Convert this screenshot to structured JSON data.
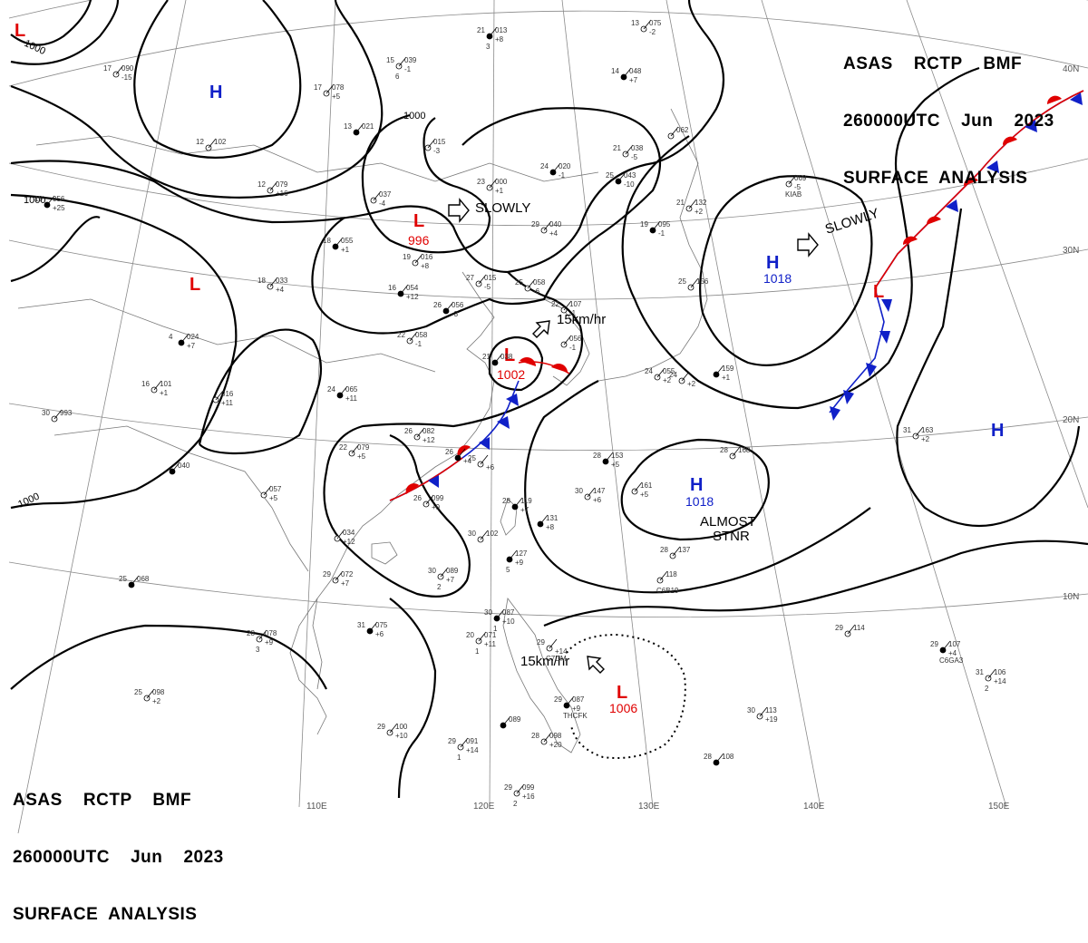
{
  "header": {
    "line1": "ASAS    RCTP    BMF",
    "line2": "260000UTC    Jun    2023",
    "line3": "SURFACE  ANALYSIS"
  },
  "grid": {
    "lat_labels": [
      "40N",
      "30N",
      "20N",
      "10N"
    ],
    "lon_labels": [
      "110E",
      "120E",
      "130E",
      "140E",
      "150E"
    ]
  },
  "isobars": {
    "label_1000": "1000"
  },
  "systems": [
    {
      "type": "L",
      "pressure": "996",
      "motion": "SLOWLY"
    },
    {
      "type": "L",
      "pressure": "1002",
      "motion": "15km/hr"
    },
    {
      "type": "L",
      "pressure": "1006",
      "motion": "15km/hr"
    },
    {
      "type": "H",
      "pressure": "1018",
      "motion": "SLOWLY"
    },
    {
      "type": "H",
      "pressure": "1018",
      "motion": "ALMOST STNR"
    },
    {
      "type": "H",
      "pressure": ""
    },
    {
      "type": "H",
      "pressure": ""
    },
    {
      "type": "L",
      "pressure": ""
    },
    {
      "type": "L",
      "pressure": ""
    }
  ],
  "labels": {
    "sys_L": "L",
    "sys_H": "H",
    "slowly": "SLOWLY",
    "speed": "15km/hr",
    "almost": "ALMOST",
    "stnr": "STNR",
    "p996": "996",
    "p1002": "1002",
    "p1006": "1006",
    "p1018": "1018"
  },
  "stations": [
    {
      "t": "21",
      "p": "013",
      "d": "+8",
      "w": "3"
    },
    {
      "t": "13",
      "p": "075",
      "d": "-2",
      "w": ""
    },
    {
      "t": "15",
      "p": "039",
      "d": "-1",
      "w": "6"
    },
    {
      "t": "14",
      "p": "048",
      "d": "+7",
      "w": ""
    },
    {
      "t": "17",
      "p": "090",
      "d": "-15",
      "w": ""
    },
    {
      "t": "17",
      "p": "078",
      "d": "+5",
      "w": ""
    },
    {
      "t": "13",
      "p": "021",
      "d": "",
      "w": ""
    },
    {
      "t": "",
      "p": "015",
      "d": "-3",
      "w": ""
    },
    {
      "t": "21",
      "p": "038",
      "d": "-5",
      "w": ""
    },
    {
      "t": "25",
      "p": "043",
      "d": "-10",
      "w": ""
    },
    {
      "t": "12",
      "p": "102",
      "d": "",
      "w": ""
    },
    {
      "t": "12",
      "p": "079",
      "d": "+16",
      "w": ""
    },
    {
      "t": "19",
      "p": "056",
      "d": "+25",
      "w": ""
    },
    {
      "t": "",
      "p": "037",
      "d": "-4",
      "w": ""
    },
    {
      "t": "23",
      "p": "000",
      "d": "+1",
      "w": ""
    },
    {
      "t": "24",
      "p": "020",
      "d": "-1",
      "w": ""
    },
    {
      "t": "",
      "p": "062",
      "d": "",
      "w": ""
    },
    {
      "t": "",
      "p": "069",
      "d": "-5",
      "w": "KIAB"
    },
    {
      "t": "18",
      "p": "055",
      "d": "+1",
      "w": ""
    },
    {
      "t": "19",
      "p": "016",
      "d": "+8",
      "w": ""
    },
    {
      "t": "29",
      "p": "040",
      "d": "+4",
      "w": ""
    },
    {
      "t": "19",
      "p": "095",
      "d": "-1",
      "w": ""
    },
    {
      "t": "21",
      "p": "132",
      "d": "+2",
      "w": ""
    },
    {
      "t": "18",
      "p": "033",
      "d": "+4",
      "w": ""
    },
    {
      "t": "16",
      "p": "054",
      "d": "+12",
      "w": ""
    },
    {
      "t": "27",
      "p": "015",
      "d": "-5",
      "w": ""
    },
    {
      "t": "25",
      "p": "058",
      "d": "-6",
      "w": ""
    },
    {
      "t": "26",
      "p": "056",
      "d": "-3",
      "w": ""
    },
    {
      "t": "22",
      "p": "107",
      "d": "-1",
      "w": ""
    },
    {
      "t": "25",
      "p": "156",
      "d": "",
      "w": ""
    },
    {
      "t": "4",
      "p": "024",
      "d": "+7",
      "w": ""
    },
    {
      "t": "22",
      "p": "058",
      "d": "-1",
      "w": ""
    },
    {
      "t": "",
      "p": "056",
      "d": "-1",
      "w": ""
    },
    {
      "t": "21",
      "p": "038",
      "d": "",
      "w": ""
    },
    {
      "t": "16",
      "p": "101",
      "d": "+1",
      "w": ""
    },
    {
      "t": "",
      "p": "016",
      "d": "+11",
      "w": ""
    },
    {
      "t": "24",
      "p": "065",
      "d": "+11",
      "w": ""
    },
    {
      "t": "24",
      "p": "055",
      "d": "+2",
      "w": ""
    },
    {
      "t": "24",
      "p": "",
      "d": "+2",
      "w": ""
    },
    {
      "t": "",
      "p": "159",
      "d": "+1",
      "w": ""
    },
    {
      "t": "30",
      "p": "993",
      "d": "",
      "w": ""
    },
    {
      "t": "26",
      "p": "082",
      "d": "+12",
      "w": ""
    },
    {
      "t": "26",
      "p": "",
      "d": "+4",
      "w": ""
    },
    {
      "t": "22",
      "p": "079",
      "d": "+5",
      "w": ""
    },
    {
      "t": "25",
      "p": "",
      "d": "+6",
      "w": ""
    },
    {
      "t": "28",
      "p": "153",
      "d": "+5",
      "w": ""
    },
    {
      "t": "28",
      "p": "168",
      "d": "",
      "w": ""
    },
    {
      "t": "31",
      "p": "163",
      "d": "+2",
      "w": ""
    },
    {
      "t": "",
      "p": "040",
      "d": "",
      "w": ""
    },
    {
      "t": "",
      "p": "057",
      "d": "+5",
      "w": ""
    },
    {
      "t": "26",
      "p": "099",
      "d": "+9",
      "w": ""
    },
    {
      "t": "28",
      "p": "119",
      "d": "+7",
      "w": ""
    },
    {
      "t": "30",
      "p": "147",
      "d": "+6",
      "w": ""
    },
    {
      "t": "",
      "p": "161",
      "d": "+5",
      "w": ""
    },
    {
      "t": "",
      "p": "131",
      "d": "+8",
      "w": ""
    },
    {
      "t": "",
      "p": "034",
      "d": "+12",
      "w": ""
    },
    {
      "t": "30",
      "p": "102",
      "d": "",
      "w": ""
    },
    {
      "t": "",
      "p": "127",
      "d": "+9",
      "w": "5"
    },
    {
      "t": "28",
      "p": "137",
      "d": "",
      "w": ""
    },
    {
      "t": "",
      "p": "118",
      "d": "",
      "w": "C6B19"
    },
    {
      "t": "25",
      "p": "068",
      "d": "",
      "w": ""
    },
    {
      "t": "29",
      "p": "072",
      "d": "+7",
      "w": ""
    },
    {
      "t": "30",
      "p": "089",
      "d": "+7",
      "w": "2"
    },
    {
      "t": "30",
      "p": "087",
      "d": "+10",
      "w": "1"
    },
    {
      "t": "29",
      "p": "114",
      "d": "",
      "w": ""
    },
    {
      "t": "28",
      "p": "078",
      "d": "+9",
      "w": "3"
    },
    {
      "t": "31",
      "p": "075",
      "d": "+6",
      "w": ""
    },
    {
      "t": "20",
      "p": "071",
      "d": "+11",
      "w": "1"
    },
    {
      "t": "29",
      "p": "",
      "d": "+14",
      "w": "C7DM"
    },
    {
      "t": "29",
      "p": "107",
      "d": "+4",
      "w": "C6GA3"
    },
    {
      "t": "31",
      "p": "106",
      "d": "+14",
      "w": "2"
    },
    {
      "t": "25",
      "p": "098",
      "d": "+2",
      "w": ""
    },
    {
      "t": "29",
      "p": "087",
      "d": "+9",
      "w": "THCFK"
    },
    {
      "t": "30",
      "p": "113",
      "d": "+19",
      "w": ""
    },
    {
      "t": "29",
      "p": "100",
      "d": "+10",
      "w": ""
    },
    {
      "t": "",
      "p": "089",
      "d": "",
      "w": ""
    },
    {
      "t": "28",
      "p": "098",
      "d": "+20",
      "w": ""
    },
    {
      "t": "29",
      "p": "091",
      "d": "+14",
      "w": "1"
    },
    {
      "t": "28",
      "p": "108",
      "d": "",
      "w": ""
    },
    {
      "t": "29",
      "p": "099",
      "d": "+16",
      "w": "2"
    }
  ]
}
